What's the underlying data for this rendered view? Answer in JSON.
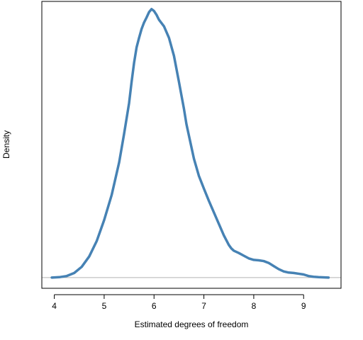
{
  "chart_data": {
    "type": "line",
    "title": "",
    "xlabel": "Estimated degrees of freedom",
    "ylabel": "Density",
    "xlim": [
      3.75,
      9.75
    ],
    "ylim": [
      -0.028,
      0.72
    ],
    "xticks": [
      4,
      5,
      6,
      7,
      8,
      9
    ],
    "show_yticks": false,
    "grid": false,
    "baseline_y": 0,
    "colors": {
      "line": "#4682b4",
      "baseline": "#b3b3b3",
      "frame": "#000000"
    },
    "series": [
      {
        "x": [
          3.95,
          4.1,
          4.25,
          4.4,
          4.55,
          4.7,
          4.85,
          5.0,
          5.15,
          5.3,
          5.4,
          5.5,
          5.55,
          5.6,
          5.65,
          5.7,
          5.75,
          5.8,
          5.85,
          5.9,
          5.95,
          6.0,
          6.05,
          6.1,
          6.2,
          6.3,
          6.4,
          6.5,
          6.55,
          6.6,
          6.65,
          6.7,
          6.75,
          6.8,
          6.9,
          7.0,
          7.1,
          7.2,
          7.3,
          7.4,
          7.5,
          7.55,
          7.6,
          7.7,
          7.8,
          7.9,
          8.0,
          8.1,
          8.2,
          8.3,
          8.4,
          8.5,
          8.6,
          8.7,
          8.8,
          8.9,
          9.0,
          9.1,
          9.2,
          9.3,
          9.5
        ],
        "y": [
          0.0,
          0.001,
          0.004,
          0.012,
          0.028,
          0.055,
          0.095,
          0.15,
          0.215,
          0.3,
          0.375,
          0.455,
          0.51,
          0.56,
          0.6,
          0.625,
          0.648,
          0.665,
          0.678,
          0.692,
          0.7,
          0.695,
          0.685,
          0.672,
          0.655,
          0.625,
          0.578,
          0.51,
          0.475,
          0.44,
          0.4,
          0.37,
          0.34,
          0.31,
          0.265,
          0.232,
          0.2,
          0.17,
          0.14,
          0.11,
          0.085,
          0.076,
          0.07,
          0.064,
          0.057,
          0.05,
          0.046,
          0.045,
          0.043,
          0.038,
          0.03,
          0.022,
          0.016,
          0.013,
          0.012,
          0.01,
          0.008,
          0.004,
          0.002,
          0.001,
          0.0
        ]
      }
    ]
  }
}
